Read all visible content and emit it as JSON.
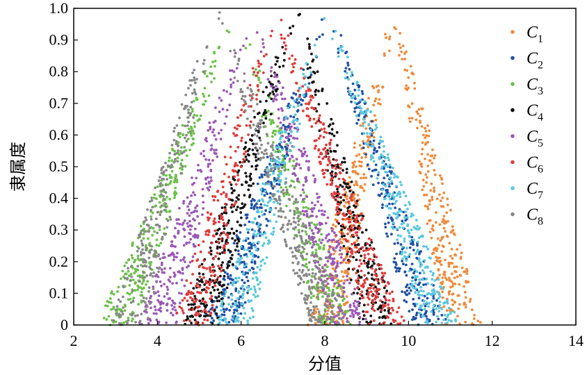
{
  "chart_data": {
    "type": "scatter",
    "title": "",
    "xlabel": "分值",
    "ylabel": "隶属度",
    "xlim": [
      2,
      14
    ],
    "ylim": [
      0,
      1.0
    ],
    "xticks": [
      "2",
      "4",
      "6",
      "8",
      "10",
      "12",
      "14"
    ],
    "yticks": [
      "0",
      "0.1",
      "0.2",
      "0.3",
      "0.4",
      "0.5",
      "0.6",
      "0.7",
      "0.8",
      "0.9",
      "1.0"
    ],
    "grid": false,
    "legend_position": "right",
    "series": [
      {
        "name": "C",
        "sub": "1",
        "color": "#f08a3c",
        "peak_x": 9.65,
        "left_x": 8.0,
        "right_x": 11.3
      },
      {
        "name": "C",
        "sub": "2",
        "color": "#1f4fa3",
        "peak_x": 8.1,
        "left_x": 5.5,
        "right_x": 10.5
      },
      {
        "name": "C",
        "sub": "3",
        "color": "#6cc04a",
        "peak_x": 5.85,
        "left_x": 3.0,
        "right_x": 8.3
      },
      {
        "name": "C",
        "sub": "4",
        "color": "#111111",
        "peak_x": 7.3,
        "left_x": 5.0,
        "right_x": 9.3
      },
      {
        "name": "C",
        "sub": "5",
        "color": "#9b59b6",
        "peak_x": 6.25,
        "left_x": 4.0,
        "right_x": 8.6
      },
      {
        "name": "C",
        "sub": "6",
        "color": "#e03a3a",
        "peak_x": 6.8,
        "left_x": 4.8,
        "right_x": 9.5
      },
      {
        "name": "C",
        "sub": "7",
        "color": "#5bc8de",
        "peak_x": 8.0,
        "left_x": 5.8,
        "right_x": 10.8
      },
      {
        "name": "C",
        "sub": "8",
        "color": "#888888",
        "peak_x": 5.4,
        "left_x": 3.3,
        "right_x": 8.1
      }
    ]
  }
}
